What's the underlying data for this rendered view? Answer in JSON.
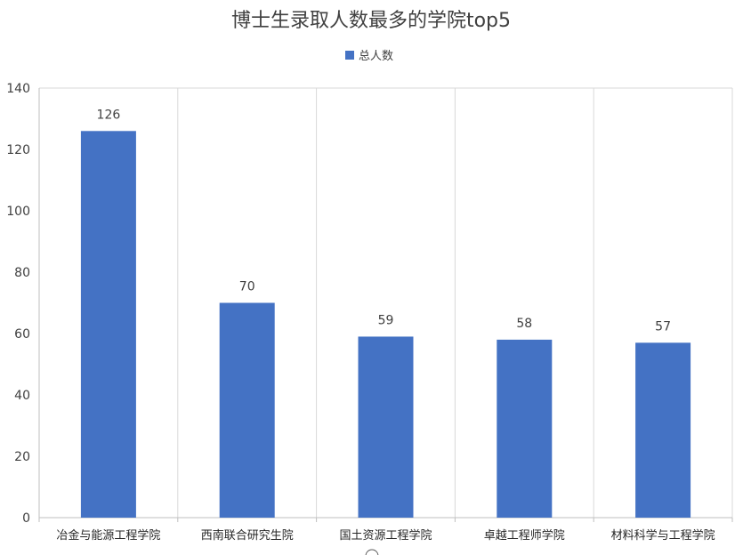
{
  "chart_data": {
    "type": "bar",
    "title": "博士生录取人数最多的学院top5",
    "categories": [
      "冶金与能源工程学院",
      "西南联合研究生院",
      "国土资源工程学院",
      "卓越工程师学院",
      "材料科学与工程学院"
    ],
    "series": [
      {
        "name": "总人数",
        "values": [
          126,
          70,
          59,
          58,
          57
        ],
        "color": "#4472C4"
      }
    ],
    "ylim": [
      0,
      140
    ],
    "yticks": [
      0,
      20,
      40,
      60,
      80,
      100,
      120,
      140
    ],
    "data_labels": true,
    "legend_position": "top",
    "grid": "vertical category separators"
  }
}
